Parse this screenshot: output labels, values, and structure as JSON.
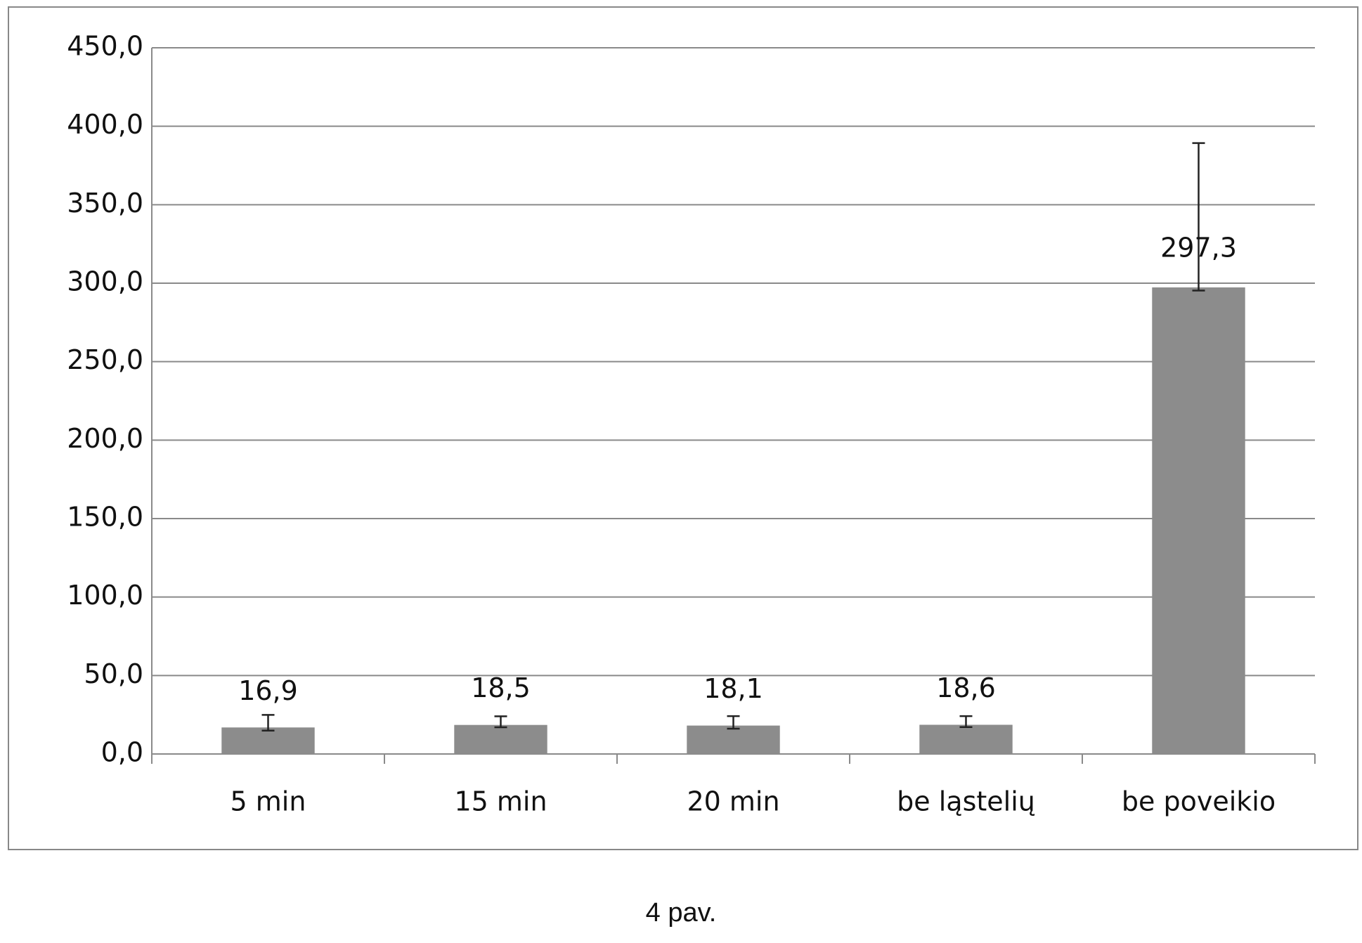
{
  "chart_data": {
    "type": "bar",
    "caption": "4 pav.",
    "categories": [
      "5 min",
      "15 min",
      "20 min",
      "be ląstelių",
      "be poveikio"
    ],
    "values": [
      16.9,
      18.5,
      18.1,
      18.6,
      297.3
    ],
    "value_labels": [
      "16,9",
      "18,5",
      "18,1",
      "18,6",
      "297,3"
    ],
    "errors_plus": [
      8,
      5.5,
      6,
      5.5,
      92
    ],
    "errors_minus": [
      2,
      1.5,
      2,
      1.5,
      2
    ],
    "color": "#8c8c8c",
    "ylim": [
      0,
      450
    ],
    "yticks": [
      {
        "value": 0,
        "label": "0,0"
      },
      {
        "value": 50,
        "label": "50,0"
      },
      {
        "value": 100,
        "label": "100,0"
      },
      {
        "value": 150,
        "label": "150,0"
      },
      {
        "value": 200,
        "label": "200,0"
      },
      {
        "value": 250,
        "label": "250,0"
      },
      {
        "value": 300,
        "label": "300,0"
      },
      {
        "value": 350,
        "label": "350,0"
      },
      {
        "value": 400,
        "label": "400,0"
      },
      {
        "value": 450,
        "label": "450,0"
      }
    ],
    "grid": true
  }
}
